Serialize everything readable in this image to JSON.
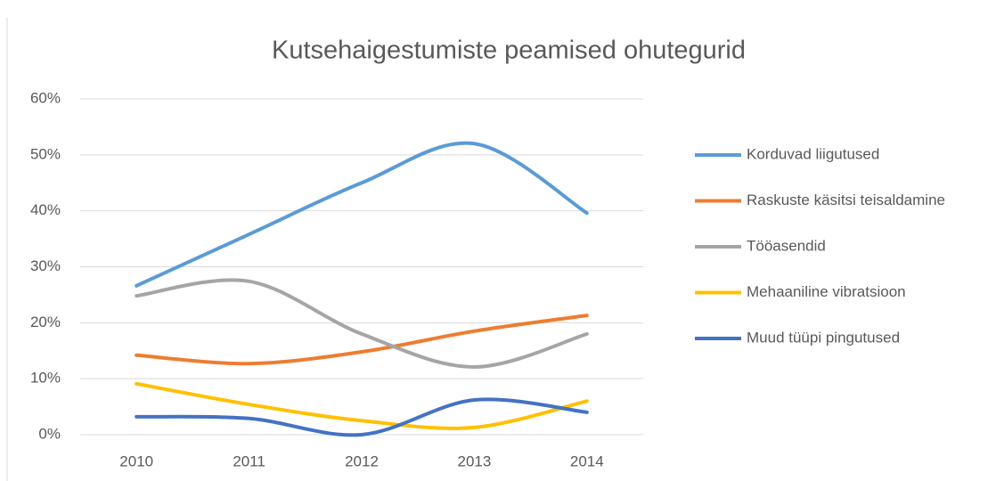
{
  "chart_data": {
    "type": "line",
    "title": "Kutsehaigestumiste peamised ohutegurid",
    "categories": [
      "2010",
      "2011",
      "2012",
      "2013",
      "2014"
    ],
    "series": [
      {
        "name": "Korduvad liigutused",
        "color": "#5b9bd5",
        "values": [
          26.6,
          35.8,
          45,
          52,
          39.6
        ]
      },
      {
        "name": "Raskuste käsitsi teisaldamine",
        "color": "#ed7d31",
        "values": [
          14.2,
          12.7,
          14.8,
          18.5,
          21.3
        ]
      },
      {
        "name": "Tööasendid",
        "color": "#a5a5a5",
        "values": [
          24.8,
          27.4,
          18,
          12.1,
          18
        ]
      },
      {
        "name": "Mehaaniline vibratsioon",
        "color": "#ffc000",
        "values": [
          9.1,
          5.4,
          2.5,
          1.3,
          6
        ]
      },
      {
        "name": "Muud tüüpi pingutused",
        "color": "#4472c4",
        "values": [
          3.2,
          2.9,
          0,
          6.2,
          4
        ]
      }
    ],
    "ylim": [
      0,
      60
    ],
    "yticks": [
      {
        "value": 0,
        "label": "0%"
      },
      {
        "value": 10,
        "label": "10%"
      },
      {
        "value": 20,
        "label": "20%"
      },
      {
        "value": 30,
        "label": "30%"
      },
      {
        "value": 40,
        "label": "40%"
      },
      {
        "value": 50,
        "label": "50%"
      },
      {
        "value": 60,
        "label": "60%"
      }
    ],
    "grid": true,
    "smooth": true,
    "legend": "right"
  }
}
